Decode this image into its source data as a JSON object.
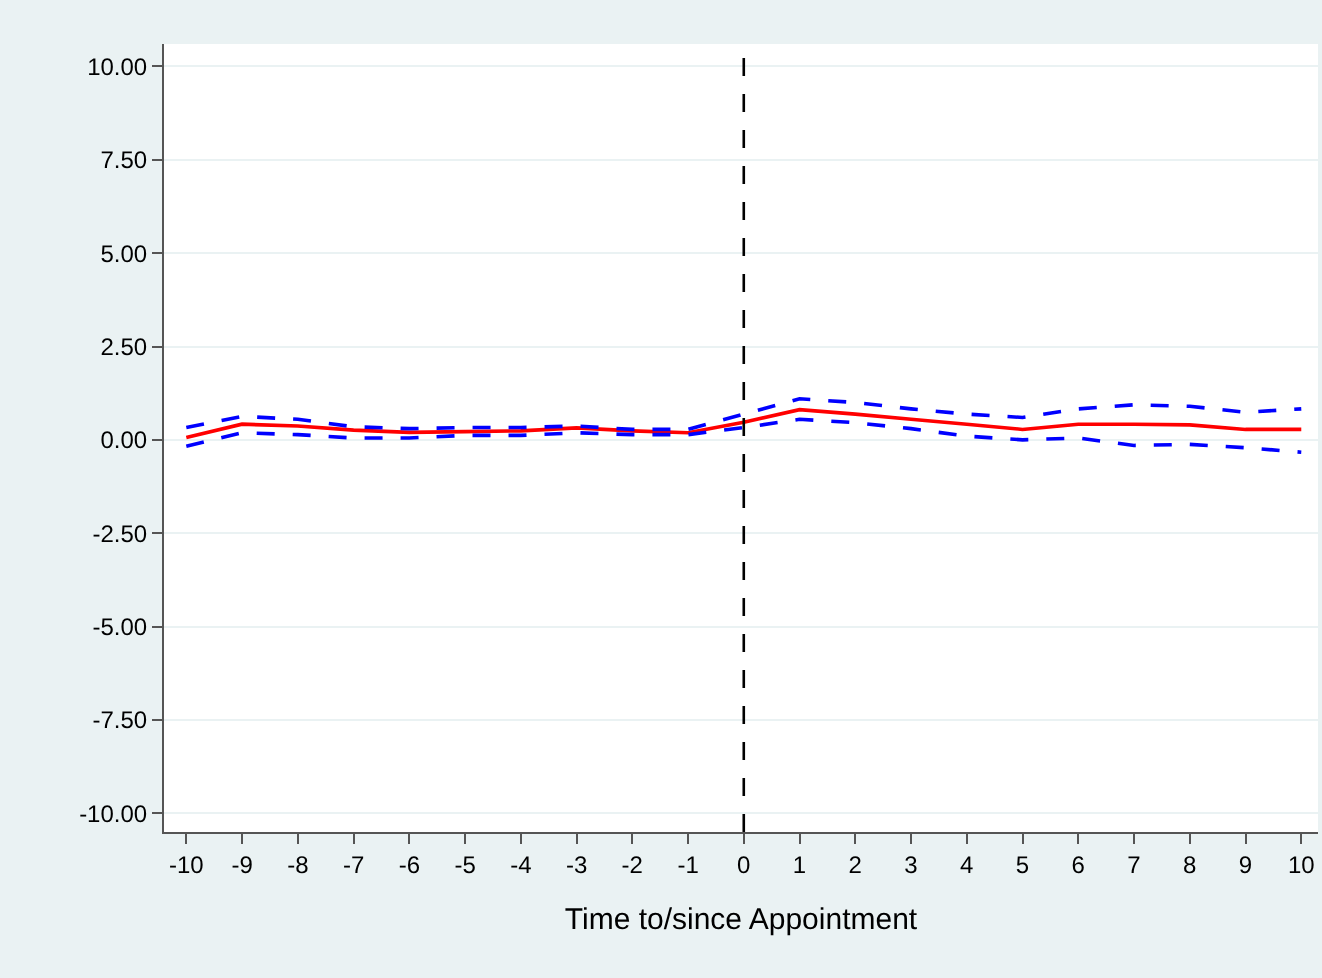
{
  "chart_data": {
    "type": "line",
    "xlabel": "Time to/since Appointment",
    "x": [
      -10,
      -9,
      -8,
      -7,
      -6,
      -5,
      -4,
      -3,
      -2,
      -1,
      0,
      1,
      2,
      3,
      4,
      5,
      6,
      7,
      8,
      9,
      10
    ],
    "series": [
      {
        "color": "#ff0000",
        "line_style": "solid",
        "values": [
          0.06,
          0.42,
          0.37,
          0.26,
          0.2,
          0.22,
          0.24,
          0.32,
          0.24,
          0.19,
          0.47,
          0.81,
          0.69,
          0.55,
          0.42,
          0.28,
          0.42,
          0.42,
          0.4,
          0.28,
          0.28
        ]
      },
      {
        "color": "#0000ff",
        "line_style": "dashed",
        "values": [
          0.33,
          0.63,
          0.55,
          0.35,
          0.3,
          0.33,
          0.33,
          0.37,
          0.28,
          0.28,
          0.69,
          1.1,
          1.0,
          0.83,
          0.69,
          0.6,
          0.83,
          0.94,
          0.9,
          0.74,
          0.83
        ]
      },
      {
        "color": "#0000ff",
        "line_style": "dashed",
        "values": [
          -0.17,
          0.19,
          0.14,
          0.05,
          0.05,
          0.12,
          0.12,
          0.19,
          0.14,
          0.14,
          0.33,
          0.55,
          0.46,
          0.3,
          0.1,
          0.0,
          0.05,
          -0.15,
          -0.12,
          -0.21,
          -0.33
        ]
      }
    ],
    "xlim": [
      -10.4,
      10.3
    ],
    "xticks": [
      -10,
      -9,
      -8,
      -7,
      -6,
      -5,
      -4,
      -3,
      -2,
      -1,
      0,
      1,
      2,
      3,
      4,
      5,
      6,
      7,
      8,
      9,
      10
    ],
    "ylim": [
      -10.5,
      10.6
    ],
    "yticks": [
      {
        "value": -10,
        "label": "-10.00"
      },
      {
        "value": -7.5,
        "label": "-7.50"
      },
      {
        "value": -5,
        "label": "-5.00"
      },
      {
        "value": -2.5,
        "label": "-2.50"
      },
      {
        "value": 0,
        "label": "0.00"
      },
      {
        "value": 2.5,
        "label": "2.50"
      },
      {
        "value": 5,
        "label": "5.00"
      },
      {
        "value": 7.5,
        "label": "7.50"
      },
      {
        "value": 10,
        "label": "10.00"
      }
    ],
    "grid": "y",
    "marker": "none",
    "ref_lines": [
      {
        "axis": "x",
        "value": 0,
        "color": "#000000",
        "line_style": "dashed"
      }
    ]
  }
}
